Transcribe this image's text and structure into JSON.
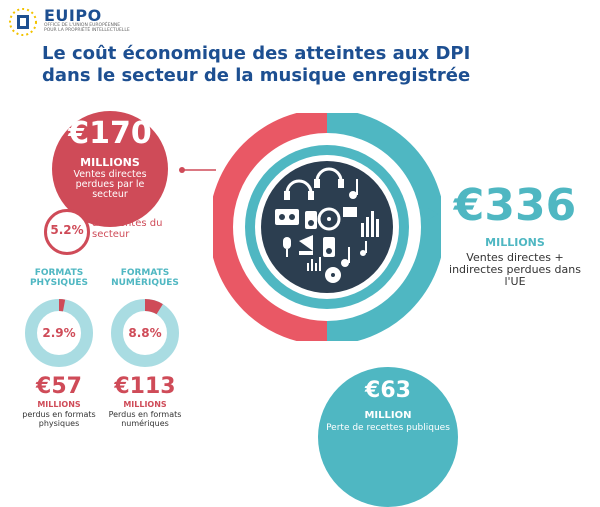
{
  "brand": {
    "logo_text": "EUIPO",
    "logo_subtitle": "OFFICE DE L'UNION EUROPÉENNE POUR LA PROPRIÉTÉ INTELLECTUELLE"
  },
  "title": "Le coût économique des atteintes aux DPI dans le secteur de la musique enregistrée",
  "sector_loss": {
    "amount": "€170",
    "unit": "MILLIONS",
    "description": "Ventes directes perdues par le secteur"
  },
  "sector_share": {
    "percent": "5.2%",
    "label": "des ventes du secteur"
  },
  "formats": [
    {
      "label": "FORMATS PHYSIQUES",
      "percent_text": "2.9%",
      "percent_value": 2.9,
      "amount": "€57",
      "unit": "MILLIONS",
      "description": "perdus en formats physiques"
    },
    {
      "label": "FORMATS NUMÉRIQUES",
      "percent_text": "8.8%",
      "percent_value": 8.8,
      "amount": "€113",
      "unit": "MILLIONS",
      "description": "Perdus en formats numériques"
    }
  ],
  "eu_loss": {
    "amount": "€336",
    "unit": "MILLIONS",
    "description": "Ventes directes + indirectes perdues dans l'UE"
  },
  "public_revenue": {
    "amount": "€63",
    "unit": "MILLION",
    "description": "Perte de recettes publiques"
  },
  "colors": {
    "red": "#cf4b58",
    "teal": "#4fb7c2",
    "navy": "#1d4f91",
    "light_teal": "#a9dce2",
    "icon_circle": "#2c3e50"
  },
  "icons": [
    "headphones-icon",
    "music-note-icon",
    "cassette-icon",
    "speaker-icon",
    "equalizer-icon",
    "vinyl-record-icon",
    "microphone-icon",
    "radio-icon",
    "gramophone-icon",
    "ipod-icon"
  ]
}
